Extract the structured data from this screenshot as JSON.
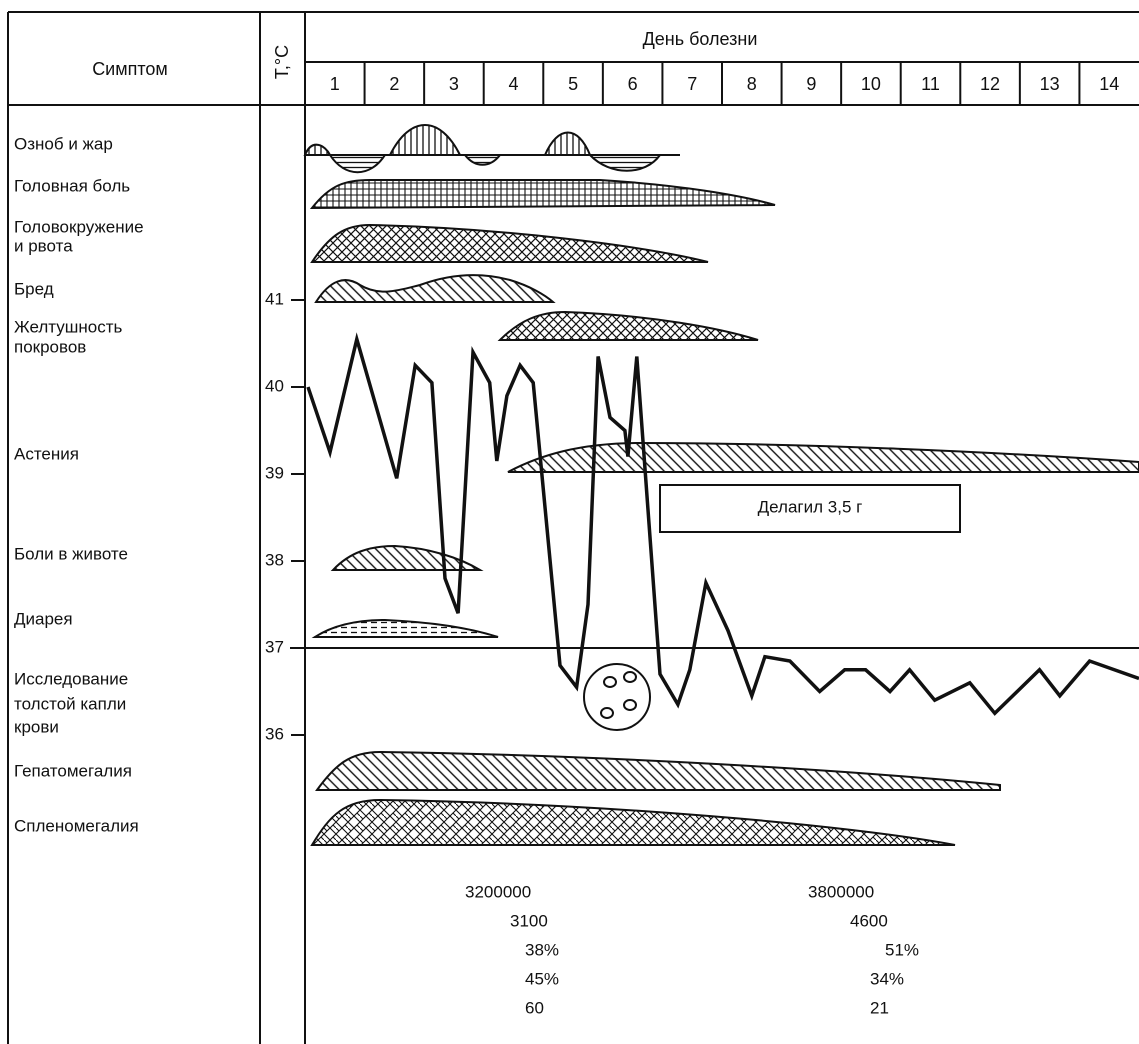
{
  "header": {
    "symptom": "Симптом",
    "temp_unit": "Т,°С",
    "days_title": "День болезни",
    "days": [
      "1",
      "2",
      "3",
      "4",
      "5",
      "6",
      "7",
      "8",
      "9",
      "10",
      "11",
      "12",
      "13",
      "14"
    ]
  },
  "symptoms": [
    [
      "Озноб и жар"
    ],
    [
      "Головная боль"
    ],
    [
      "Головокружение",
      "и рвота"
    ],
    [
      "Бред"
    ],
    [
      "Желтушность",
      "покровов"
    ],
    [
      "Астения"
    ],
    [
      "Боли в животе"
    ],
    [
      "Диарея"
    ],
    [
      "Исследование",
      "толстой капли",
      "крови"
    ],
    [
      "Гепатомегалия"
    ],
    [
      "Спленомегалия"
    ]
  ],
  "temperature": {
    "ticks": [
      41,
      40,
      39,
      38,
      37,
      36
    ],
    "x": [
      0.05,
      0.42,
      0.87,
      1.54,
      1.85,
      2.13,
      2.35,
      2.57,
      2.82,
      3.1,
      3.22,
      3.39,
      3.61,
      3.83,
      4.28,
      4.56,
      4.75,
      4.92,
      5.12,
      5.37,
      5.42,
      5.57,
      5.96,
      6.26,
      6.46,
      6.73,
      7.1,
      7.5,
      7.72,
      8.14,
      8.64,
      9.06,
      9.41,
      9.82,
      10.15,
      10.57,
      11.16,
      11.58,
      12.33,
      12.67,
      13.17,
      14.0
    ],
    "values": [
      40.0,
      39.25,
      40.55,
      38.95,
      40.25,
      40.05,
      37.8,
      37.4,
      40.4,
      40.05,
      39.15,
      39.9,
      40.25,
      40.05,
      36.8,
      36.55,
      37.5,
      40.35,
      39.65,
      39.5,
      39.2,
      40.35,
      36.7,
      36.35,
      36.75,
      37.75,
      37.2,
      36.45,
      36.9,
      36.85,
      36.5,
      36.75,
      36.75,
      36.5,
      36.75,
      36.4,
      36.6,
      36.25,
      36.75,
      36.45,
      36.85,
      36.65
    ]
  },
  "treatment": "Делагил 3,5 г",
  "lab_results": {
    "before": [
      "3200000",
      "3100",
      "38%",
      "45%",
      "60"
    ],
    "after": [
      "3800000",
      "4600",
      "51%",
      "34%",
      "21"
    ]
  }
}
